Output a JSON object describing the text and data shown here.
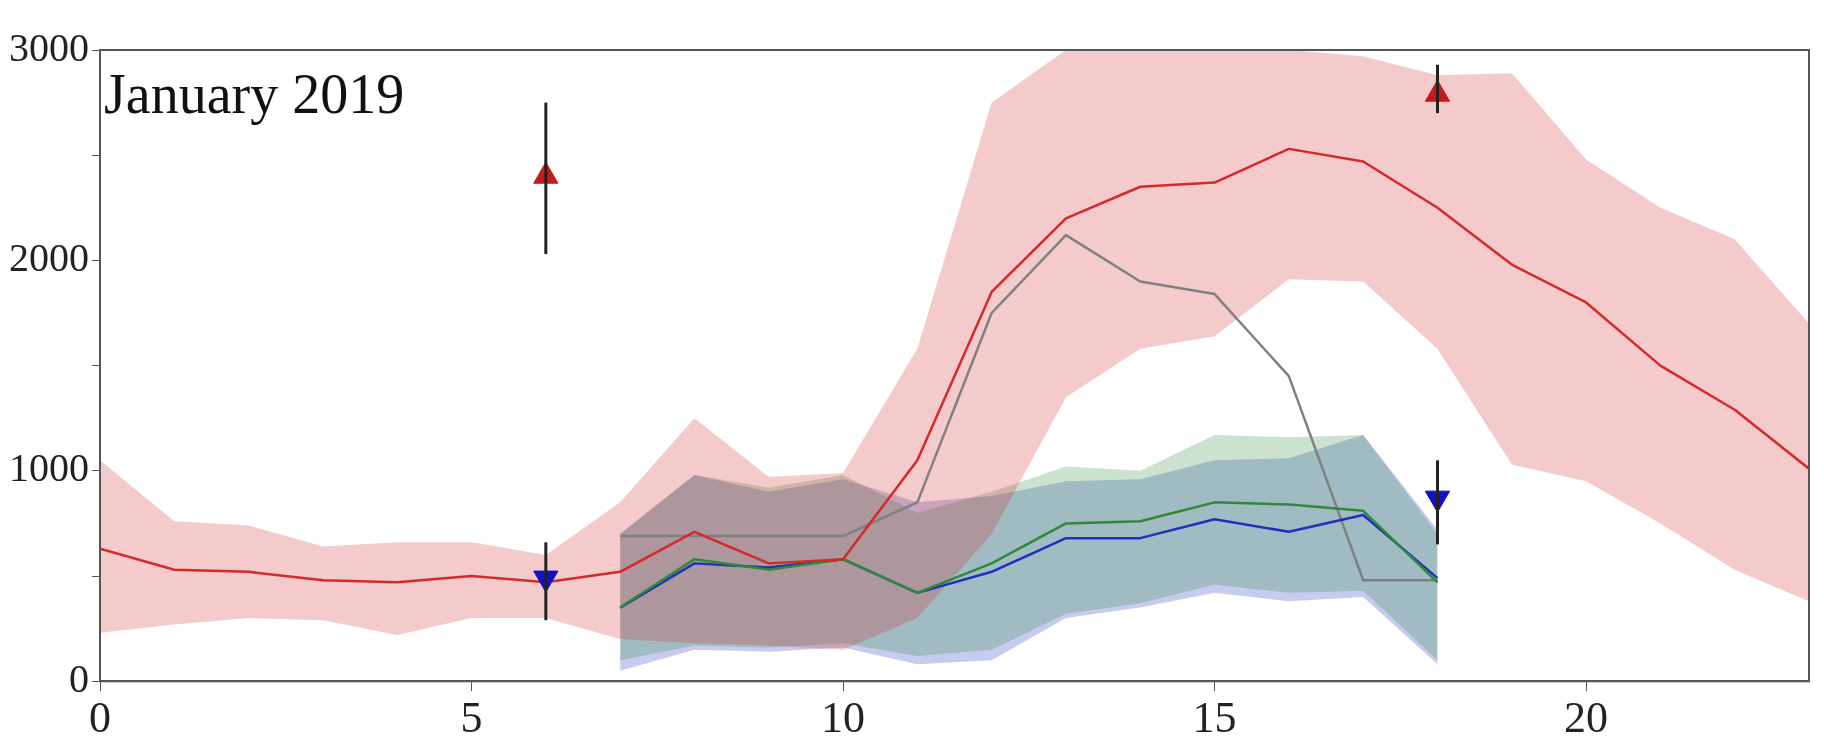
{
  "chart_data": {
    "type": "line",
    "annotations": [
      "January 2019"
    ],
    "xlim": [
      0,
      23
    ],
    "xticks": [
      0,
      5,
      10,
      15,
      20
    ],
    "ylim": [
      0,
      3000
    ],
    "yticks": [
      0,
      {
        "value": 500,
        "label": null
      },
      1000,
      {
        "value": 1500,
        "label": null
      },
      2000,
      {
        "value": 2500,
        "label": null
      },
      3000
    ],
    "grid": false,
    "legend": false,
    "marker": "none",
    "line_style": "solid",
    "series": [
      {
        "color": "#d42a2a",
        "x": [
          0,
          1,
          2,
          3,
          4,
          5,
          6,
          7,
          8,
          9,
          10,
          11,
          12,
          13,
          14,
          15,
          16,
          17,
          18,
          19,
          20,
          21,
          22,
          23
        ],
        "values": [
          630,
          530,
          520,
          480,
          470,
          500,
          470,
          520,
          710,
          560,
          580,
          1050,
          1850,
          2200,
          2350,
          2370,
          2530,
          2470,
          2250,
          1980,
          1800,
          1500,
          1290,
          1010
        ],
        "lower": [
          230,
          270,
          300,
          290,
          220,
          300,
          300,
          200,
          180,
          170,
          150,
          300,
          700,
          1350,
          1580,
          1640,
          1910,
          1900,
          1580,
          1030,
          950,
          750,
          530,
          380
        ],
        "upper": [
          1050,
          760,
          740,
          640,
          660,
          660,
          600,
          850,
          1250,
          970,
          990,
          1580,
          2750,
          3000,
          3000,
          3000,
          3000,
          2970,
          2880,
          2890,
          2480,
          2250,
          2100,
          1700
        ]
      },
      {
        "color": "#2e8a3a",
        "x": [
          7,
          8,
          9,
          10,
          11,
          12,
          13,
          14,
          15,
          16,
          17,
          18
        ],
        "values": [
          350,
          580,
          530,
          580,
          420,
          560,
          750,
          760,
          850,
          840,
          810,
          470
        ],
        "lower": [
          100,
          170,
          160,
          180,
          120,
          150,
          320,
          370,
          460,
          420,
          430,
          100
        ],
        "upper": [
          700,
          980,
          920,
          980,
          800,
          900,
          1020,
          1000,
          1170,
          1160,
          1170,
          700
        ]
      },
      {
        "color": "#1f2fc0",
        "x": [
          7,
          8,
          9,
          10,
          11,
          12,
          13,
          14,
          15,
          16,
          17,
          18
        ],
        "values": [
          350,
          560,
          540,
          580,
          420,
          520,
          680,
          680,
          770,
          710,
          790,
          490
        ],
        "lower": [
          50,
          150,
          140,
          160,
          80,
          100,
          300,
          350,
          420,
          380,
          400,
          80
        ],
        "upper": [
          700,
          980,
          900,
          960,
          850,
          880,
          950,
          960,
          1050,
          1060,
          1170,
          720
        ]
      },
      {
        "color": "#808080",
        "x": [
          7,
          8,
          9,
          10,
          11,
          12,
          13,
          14,
          15,
          16,
          17,
          18
        ],
        "values": [
          690,
          690,
          690,
          690,
          850,
          1750,
          2120,
          1900,
          1840,
          1450,
          480,
          480
        ]
      },
      {
        "type": "scatter",
        "marker": "triangle",
        "color": "#c41a1a",
        "x": [
          6,
          18
        ],
        "values": [
          2400,
          2790
        ],
        "errors": [
          [
            2030,
            2750
          ],
          [
            2700,
            2930
          ]
        ]
      },
      {
        "type": "scatter",
        "marker": "triangle-down",
        "color": "#1010c8",
        "x": [
          6,
          18
        ],
        "values": [
          490,
          870
        ],
        "errors": [
          [
            290,
            660
          ],
          [
            650,
            1050
          ]
        ]
      }
    ]
  }
}
